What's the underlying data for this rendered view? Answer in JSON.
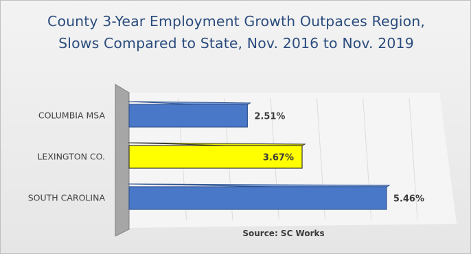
{
  "chart_data": {
    "type": "bar",
    "orientation": "horizontal",
    "title": "County 3-Year Employment Growth Outpaces Region, Slows Compared to State, Nov. 2016 to Nov. 2019",
    "categories": [
      "COLUMBIA MSA",
      "LEXINGTON CO.",
      "SOUTH CAROLINA"
    ],
    "values": [
      2.51,
      3.67,
      5.46
    ],
    "value_labels": [
      "2.51%",
      "3.67%",
      "5.46%"
    ],
    "bar_colors": [
      "#4472c4",
      "#ffff00",
      "#4472c4"
    ],
    "xlim": [
      0,
      6
    ],
    "grid": true,
    "legend": "none",
    "source_note": "Source: SC Works"
  }
}
